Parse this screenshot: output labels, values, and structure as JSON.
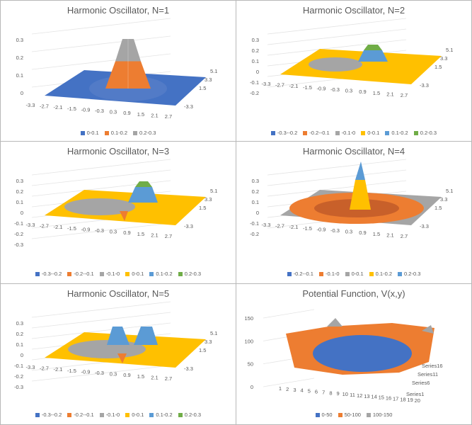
{
  "colors": {
    "blue": "#4472c4",
    "orange": "#ed7d31",
    "gray": "#a5a5a5",
    "gold": "#ffc000",
    "lightblue": "#5b9bd5",
    "green": "#70ad47"
  },
  "chart_data": [
    {
      "type": "surface",
      "title": "Harmonic Oscillator, N=1",
      "x": [
        "-3.3",
        "-2.7",
        "-2.1",
        "-1.5",
        "-0.9",
        "-0.3",
        "0.3",
        "0.9",
        "1.5",
        "2.1",
        "2.7"
      ],
      "depth": [
        "5.1",
        "3.3",
        "1.5",
        "-3.3"
      ],
      "z_ticks": [
        "0.3",
        "0.2",
        "0.1",
        "0"
      ],
      "zlim": [
        0,
        0.3
      ],
      "bands": [
        {
          "label": "0-0.1",
          "color": "#4472c4"
        },
        {
          "label": "0.1-0.2",
          "color": "#ed7d31"
        },
        {
          "label": "0.2-0.3",
          "color": "#a5a5a5"
        }
      ]
    },
    {
      "type": "surface",
      "title": "Harmonic Oscillator, N=2",
      "x": [
        "-3.3",
        "-2.7",
        "-2.1",
        "-1.5",
        "-0.9",
        "-0.3",
        "0.3",
        "0.9",
        "1.5",
        "2.1",
        "2.7"
      ],
      "depth": [
        "5.1",
        "3.3",
        "1.5",
        "-3.3"
      ],
      "z_ticks": [
        "0.3",
        "0.2",
        "0.1",
        "0",
        "-0.1",
        "-0.2"
      ],
      "zlim": [
        -0.2,
        0.3
      ],
      "bands": [
        {
          "label": "-0.3--0.2",
          "color": "#4472c4"
        },
        {
          "label": "-0.2--0.1",
          "color": "#ed7d31"
        },
        {
          "label": "-0.1-0",
          "color": "#a5a5a5"
        },
        {
          "label": "0-0.1",
          "color": "#ffc000"
        },
        {
          "label": "0.1-0.2",
          "color": "#5b9bd5"
        },
        {
          "label": "0.2-0.3",
          "color": "#70ad47"
        }
      ]
    },
    {
      "type": "surface",
      "title": "Harmonic Oscillator, N=3",
      "x": [
        "-3.3",
        "-2.7",
        "-2.1",
        "-1.5",
        "-0.9",
        "-0.3",
        "0.3",
        "0.9",
        "1.5",
        "2.1",
        "2.7"
      ],
      "depth": [
        "5.1",
        "3.3",
        "1.5",
        "-3.3"
      ],
      "z_ticks": [
        "0.3",
        "0.2",
        "0.1",
        "0",
        "-0.1",
        "-0.2",
        "-0.3"
      ],
      "zlim": [
        -0.3,
        0.3
      ],
      "bands": [
        {
          "label": "-0.3--0.2",
          "color": "#4472c4"
        },
        {
          "label": "-0.2--0.1",
          "color": "#ed7d31"
        },
        {
          "label": "-0.1-0",
          "color": "#a5a5a5"
        },
        {
          "label": "0-0.1",
          "color": "#ffc000"
        },
        {
          "label": "0.1-0.2",
          "color": "#5b9bd5"
        },
        {
          "label": "0.2-0.3",
          "color": "#70ad47"
        }
      ]
    },
    {
      "type": "surface",
      "title": "Harmonic Oscillator, N=4",
      "x": [
        "-3.3",
        "-2.7",
        "-2.1",
        "-1.5",
        "-0.9",
        "-0.3",
        "0.3",
        "0.9",
        "1.5",
        "2.1",
        "2.7"
      ],
      "depth": [
        "5.1",
        "3.3",
        "1.5",
        "-3.3"
      ],
      "z_ticks": [
        "0.3",
        "0.2",
        "0.1",
        "0",
        "-0.1",
        "-0.2"
      ],
      "zlim": [
        -0.2,
        0.3
      ],
      "bands": [
        {
          "label": "-0.2--0.1",
          "color": "#4472c4"
        },
        {
          "label": "-0.1-0",
          "color": "#ed7d31"
        },
        {
          "label": "0-0.1",
          "color": "#a5a5a5"
        },
        {
          "label": "0.1-0.2",
          "color": "#ffc000"
        },
        {
          "label": "0.2-0.3",
          "color": "#5b9bd5"
        }
      ]
    },
    {
      "type": "surface",
      "title": "Harmonic Oscillator, N=5",
      "x": [
        "-3.3",
        "-2.7",
        "-2.1",
        "-1.5",
        "-0.9",
        "-0.3",
        "0.3",
        "0.9",
        "1.5",
        "2.1",
        "2.7"
      ],
      "depth": [
        "5.1",
        "3.3",
        "1.5",
        "-3.3"
      ],
      "z_ticks": [
        "0.3",
        "0.2",
        "0.1",
        "0",
        "-0.1",
        "-0.2",
        "-0.3"
      ],
      "zlim": [
        -0.3,
        0.3
      ],
      "bands": [
        {
          "label": "-0.3--0.2",
          "color": "#4472c4"
        },
        {
          "label": "-0.2--0.1",
          "color": "#ed7d31"
        },
        {
          "label": "-0.1-0",
          "color": "#a5a5a5"
        },
        {
          "label": "0-0.1",
          "color": "#ffc000"
        },
        {
          "label": "0.1-0.2",
          "color": "#5b9bd5"
        },
        {
          "label": "0.2-0.3",
          "color": "#70ad47"
        }
      ]
    },
    {
      "type": "surface",
      "title": "Potential Function, V(x,y)",
      "x": [
        "1",
        "2",
        "3",
        "4",
        "5",
        "6",
        "7",
        "8",
        "9",
        "10",
        "11",
        "12",
        "13",
        "14",
        "15",
        "16",
        "17",
        "18",
        "19",
        "20"
      ],
      "depth": [
        "Series16",
        "Series11",
        "Series6",
        "Series1"
      ],
      "z_ticks": [
        "150",
        "100",
        "50",
        "0"
      ],
      "zlim": [
        0,
        150
      ],
      "bands": [
        {
          "label": "0-50",
          "color": "#4472c4"
        },
        {
          "label": "50-100",
          "color": "#ed7d31"
        },
        {
          "label": "100-150",
          "color": "#a5a5a5"
        }
      ]
    }
  ]
}
